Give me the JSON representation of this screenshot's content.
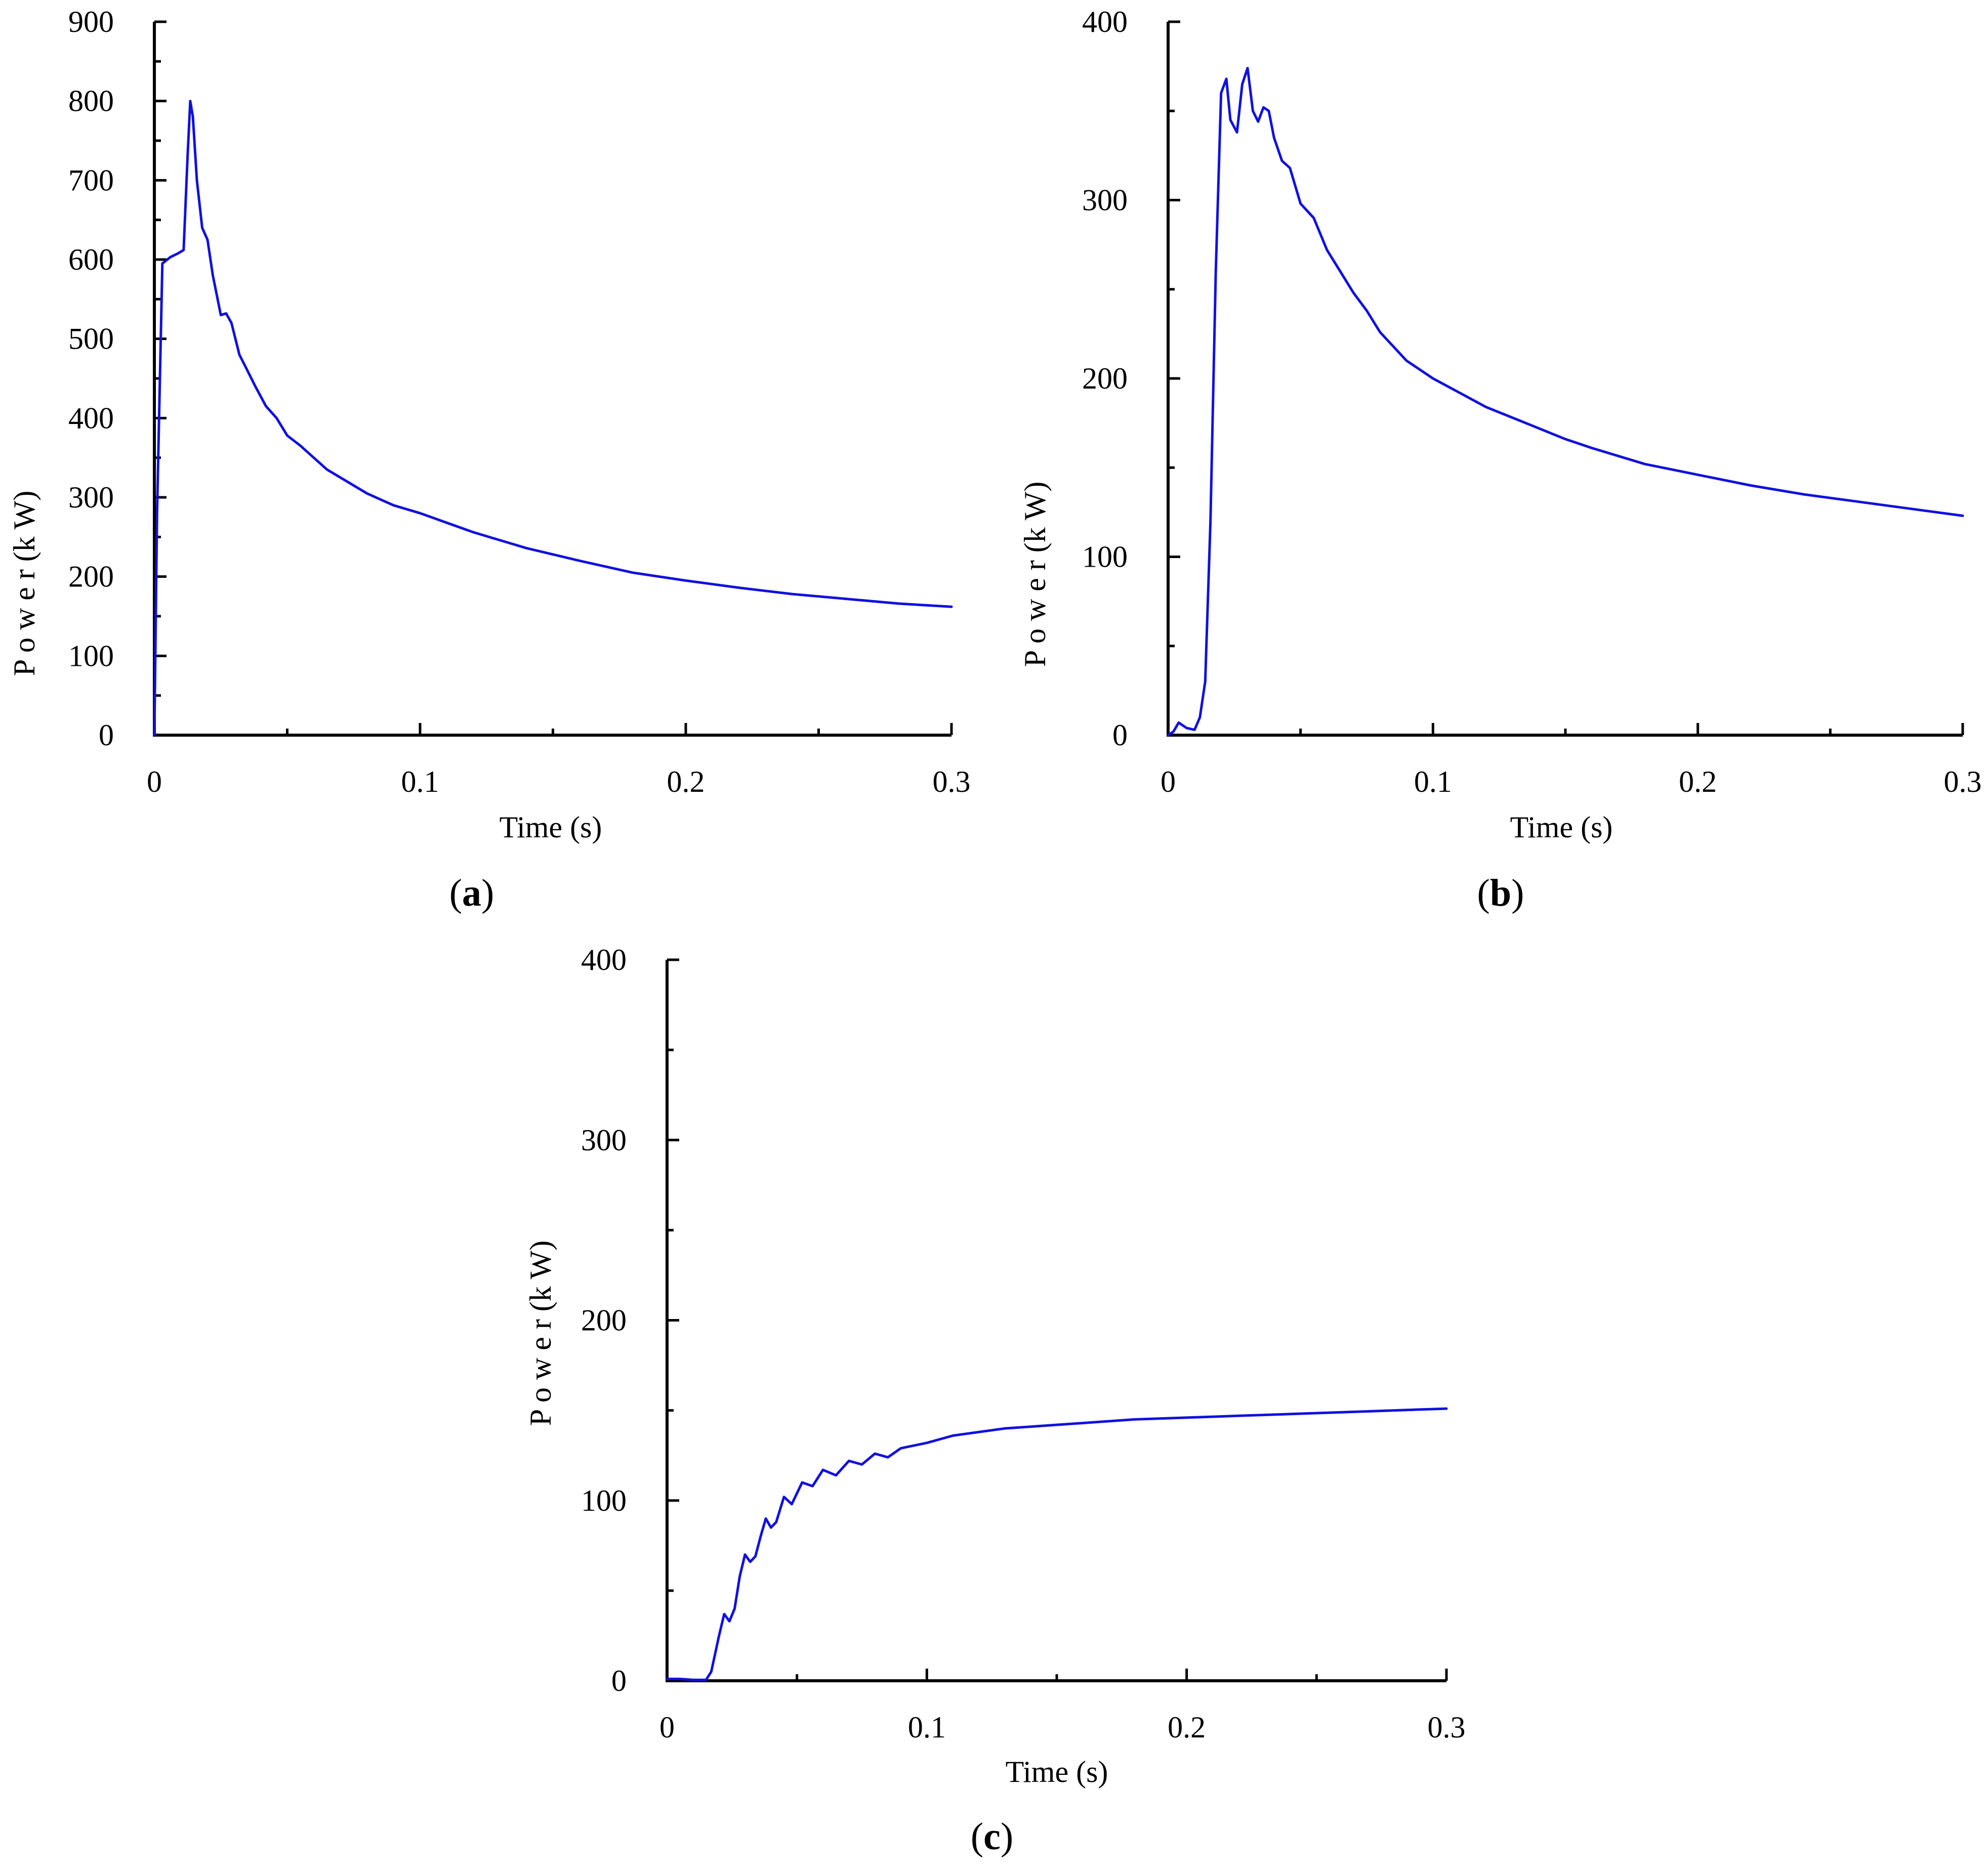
{
  "figure": {
    "panels": [
      "a",
      "b",
      "c"
    ]
  },
  "chart_data": [
    {
      "id": "a",
      "type": "line",
      "panel_label": "a",
      "xlabel": "Time  (s)",
      "ylabel": "P o w e r  (k W)",
      "xlim": [
        0,
        0.3
      ],
      "ylim": [
        0,
        900
      ],
      "xticks": [
        0,
        0.1,
        0.2,
        0.3
      ],
      "yticks": [
        0,
        100,
        200,
        300,
        400,
        500,
        600,
        700,
        800,
        900
      ],
      "line_color": "#1010e0",
      "grid": false,
      "series": [
        {
          "x": [
            0,
            0.001,
            0.003,
            0.006,
            0.009,
            0.011,
            0.0125,
            0.0135,
            0.0145,
            0.016,
            0.018,
            0.02,
            0.022,
            0.025,
            0.027,
            0.029,
            0.032,
            0.035,
            0.038,
            0.042,
            0.046,
            0.05,
            0.055,
            0.06,
            0.065,
            0.07,
            0.08,
            0.09,
            0.1,
            0.11,
            0.12,
            0.13,
            0.14,
            0.15,
            0.16,
            0.18,
            0.2,
            0.22,
            0.24,
            0.26,
            0.28,
            0.3
          ],
          "y": [
            0,
            280,
            595,
            603,
            608,
            612,
            730,
            800,
            780,
            700,
            640,
            625,
            580,
            530,
            532,
            520,
            480,
            460,
            440,
            415,
            400,
            378,
            365,
            350,
            335,
            325,
            305,
            290,
            280,
            268,
            256,
            246,
            236,
            228,
            220,
            205,
            195,
            186,
            178,
            172,
            166,
            162
          ]
        }
      ]
    },
    {
      "id": "b",
      "type": "line",
      "panel_label": "b",
      "xlabel": "Time (s)",
      "ylabel": "P o w e r  (k W)",
      "xlim": [
        0,
        0.3
      ],
      "ylim": [
        0,
        400
      ],
      "xticks": [
        0,
        0.1,
        0.2,
        0.3
      ],
      "yticks": [
        0,
        100,
        200,
        300,
        400
      ],
      "line_color": "#1010e0",
      "grid": false,
      "series": [
        {
          "x": [
            0,
            0.002,
            0.004,
            0.007,
            0.01,
            0.012,
            0.014,
            0.016,
            0.018,
            0.02,
            0.022,
            0.0235,
            0.026,
            0.028,
            0.03,
            0.032,
            0.034,
            0.036,
            0.038,
            0.04,
            0.043,
            0.046,
            0.05,
            0.055,
            0.06,
            0.065,
            0.07,
            0.075,
            0.08,
            0.09,
            0.1,
            0.11,
            0.12,
            0.13,
            0.14,
            0.15,
            0.16,
            0.18,
            0.2,
            0.22,
            0.24,
            0.26,
            0.28,
            0.3
          ],
          "y": [
            0,
            2,
            7,
            4,
            3,
            10,
            30,
            120,
            260,
            360,
            368,
            345,
            338,
            365,
            374,
            350,
            344,
            352,
            350,
            335,
            322,
            318,
            298,
            290,
            272,
            260,
            248,
            238,
            226,
            210,
            200,
            192,
            184,
            178,
            172,
            166,
            161,
            152,
            146,
            140,
            135,
            131,
            127,
            123
          ]
        }
      ]
    },
    {
      "id": "c",
      "type": "line",
      "panel_label": "c",
      "xlabel": "Time  (s)",
      "ylabel": "P o w e r  (k W)",
      "xlim": [
        0,
        0.3
      ],
      "ylim": [
        0,
        400
      ],
      "xticks": [
        0,
        0.1,
        0.2,
        0.3
      ],
      "yticks": [
        0,
        100,
        200,
        300,
        400
      ],
      "line_color": "#1010e0",
      "grid": false,
      "series": [
        {
          "x": [
            0,
            0.005,
            0.01,
            0.015,
            0.017,
            0.02,
            0.022,
            0.024,
            0.026,
            0.028,
            0.03,
            0.032,
            0.034,
            0.036,
            0.038,
            0.04,
            0.042,
            0.045,
            0.048,
            0.052,
            0.056,
            0.06,
            0.065,
            0.07,
            0.075,
            0.08,
            0.085,
            0.09,
            0.1,
            0.11,
            0.12,
            0.13,
            0.14,
            0.15,
            0.16,
            0.18,
            0.2,
            0.22,
            0.24,
            0.26,
            0.28,
            0.3
          ],
          "y": [
            1,
            1,
            0.5,
            0.5,
            5,
            25,
            37,
            33,
            40,
            58,
            70,
            66,
            69,
            80,
            90,
            85,
            88,
            102,
            98,
            110,
            108,
            117,
            114,
            122,
            120,
            126,
            124,
            129,
            132,
            136,
            138,
            140,
            141,
            142,
            143,
            145,
            146,
            147,
            148,
            149,
            150,
            151
          ]
        }
      ]
    }
  ]
}
